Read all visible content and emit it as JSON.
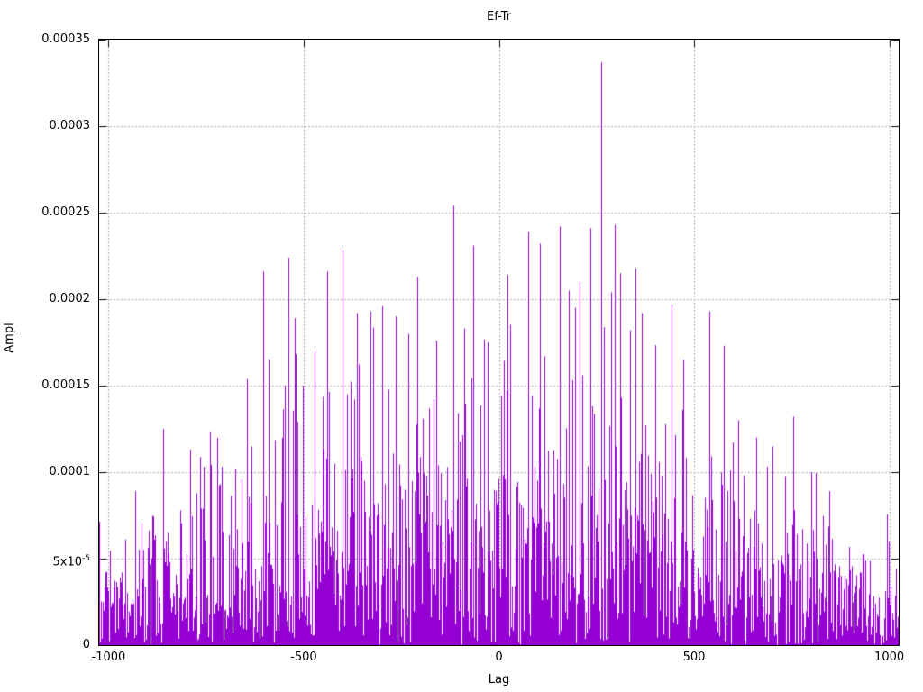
{
  "chart_data": {
    "type": "line",
    "style": "impulses",
    "title": "Ef-Tr",
    "xlabel": "Lag",
    "ylabel": "Ampl",
    "xlim": [
      -1024,
      1024
    ],
    "ylim": [
      0,
      0.00035
    ],
    "x_ticks": [
      {
        "value": -1000,
        "label": "-1000"
      },
      {
        "value": -500,
        "label": "-500"
      },
      {
        "value": 0,
        "label": "0"
      },
      {
        "value": 500,
        "label": "500"
      },
      {
        "value": 1000,
        "label": "1000"
      }
    ],
    "y_ticks": [
      {
        "value": 0,
        "label": "0"
      },
      {
        "value": 5e-05,
        "label": "5x10",
        "sup": "-5"
      },
      {
        "value": 0.0001,
        "label": "0.0001"
      },
      {
        "value": 0.00015,
        "label": "0.00015"
      },
      {
        "value": 0.0002,
        "label": "0.0002"
      },
      {
        "value": 0.00025,
        "label": "0.00025"
      },
      {
        "value": 0.0003,
        "label": "0.0003"
      },
      {
        "value": 0.00035,
        "label": "0.00035"
      }
    ],
    "grid": "dotted",
    "legend_position": "none",
    "colors": {
      "line": "#9400d3",
      "grid": "#909090",
      "border": "#000000",
      "background": "#ffffff",
      "text": "#000000"
    },
    "x_step": 2,
    "noise_seed": 7,
    "noise_scale": 0.38,
    "envelope": [
      [
        -1024,
        7e-05
      ],
      [
        -950,
        8e-05
      ],
      [
        -900,
        0.0001
      ],
      [
        -850,
        0.00012
      ],
      [
        -800,
        0.00012
      ],
      [
        -750,
        0.00013
      ],
      [
        -700,
        0.00013
      ],
      [
        -650,
        0.00015
      ],
      [
        -600,
        0.00016
      ],
      [
        -550,
        0.00017
      ],
      [
        -500,
        0.00017
      ],
      [
        -450,
        0.00018
      ],
      [
        -400,
        0.00019
      ],
      [
        -350,
        0.00018
      ],
      [
        -300,
        0.00018
      ],
      [
        -250,
        0.00018
      ],
      [
        -200,
        0.00019
      ],
      [
        -150,
        0.00019
      ],
      [
        -100,
        0.0002
      ],
      [
        -50,
        0.00019
      ],
      [
        0,
        0.00019
      ],
      [
        50,
        0.0002
      ],
      [
        100,
        0.0002
      ],
      [
        150,
        0.0002
      ],
      [
        200,
        0.00019
      ],
      [
        250,
        0.0002
      ],
      [
        300,
        0.0002
      ],
      [
        350,
        0.00018
      ],
      [
        400,
        0.00017
      ],
      [
        450,
        0.00016
      ],
      [
        500,
        0.00015
      ],
      [
        550,
        0.00013
      ],
      [
        600,
        0.00012
      ],
      [
        650,
        0.00011
      ],
      [
        700,
        0.0001
      ],
      [
        750,
        0.00011
      ],
      [
        800,
        0.0001
      ],
      [
        850,
        9e-05
      ],
      [
        900,
        9e-05
      ],
      [
        950,
        8e-05
      ],
      [
        1024,
        7e-05
      ]
    ],
    "peaks": [
      [
        -860,
        0.000125
      ],
      [
        -790,
        0.000113
      ],
      [
        -740,
        0.000123
      ],
      [
        -645,
        0.000152
      ],
      [
        -604,
        0.000216
      ],
      [
        -539,
        0.000224
      ],
      [
        -523,
        0.000189
      ],
      [
        -502,
        0.00015
      ],
      [
        -473,
        0.00017
      ],
      [
        -441,
        0.000216
      ],
      [
        -401,
        0.000228
      ],
      [
        -364,
        0.000192
      ],
      [
        -330,
        0.000193
      ],
      [
        -299,
        0.000196
      ],
      [
        -264,
        0.00019
      ],
      [
        -209,
        0.000213
      ],
      [
        -160,
        0.000176
      ],
      [
        -117,
        0.000254
      ],
      [
        -90,
        0.000183
      ],
      [
        -66,
        0.000231
      ],
      [
        -30,
        0.000175
      ],
      [
        22,
        0.000214
      ],
      [
        76,
        0.000239
      ],
      [
        106,
        0.000232
      ],
      [
        156,
        0.000242
      ],
      [
        180,
        0.000205
      ],
      [
        207,
        0.00021
      ],
      [
        234,
        0.000241
      ],
      [
        262,
        0.000337
      ],
      [
        296,
        0.000243
      ],
      [
        310,
        0.000215
      ],
      [
        350,
        0.000218
      ],
      [
        365,
        0.000192
      ],
      [
        400,
        0.00017
      ],
      [
        443,
        0.000197
      ],
      [
        473,
        0.000165
      ],
      [
        540,
        0.000193
      ],
      [
        577,
        0.000173
      ],
      [
        612,
        0.00013
      ],
      [
        660,
        0.00012
      ],
      [
        700,
        0.000115
      ],
      [
        754,
        0.000132
      ],
      [
        800,
        0.0001
      ],
      [
        846,
        8.9e-05
      ],
      [
        998,
        6e-05
      ]
    ]
  }
}
